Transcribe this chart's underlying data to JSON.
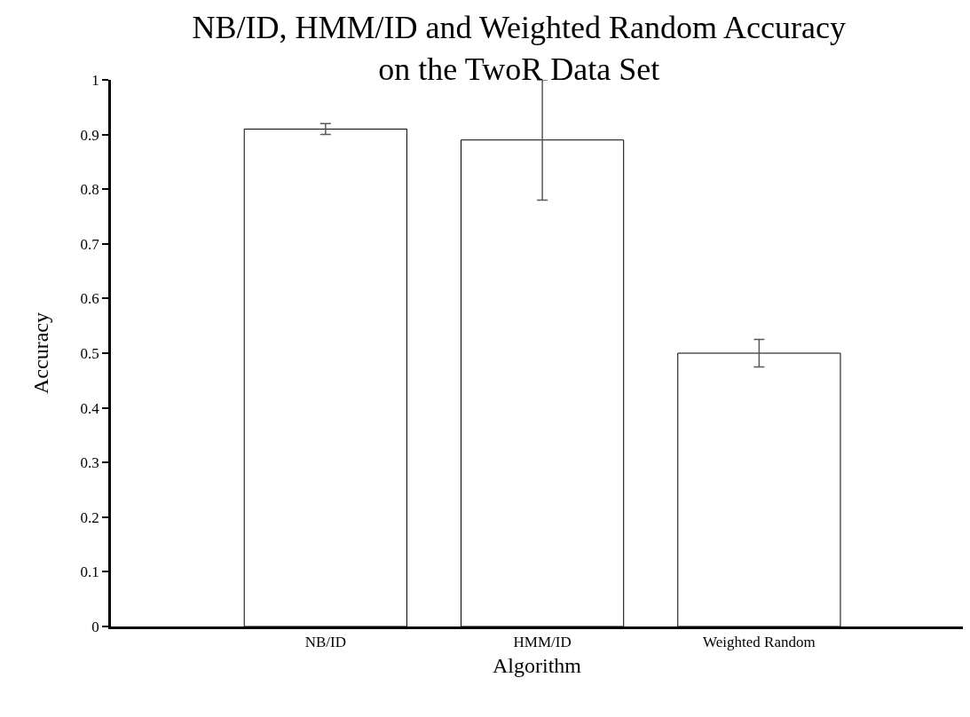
{
  "chart_data": {
    "type": "bar",
    "title": "NB/ID, HMM/ID and Weighted Random Accuracy\non the TwoR Data Set",
    "xlabel": "Algorithm",
    "ylabel": "Accuracy",
    "categories": [
      "NB/ID",
      "HMM/ID",
      "Weighted Random"
    ],
    "values": [
      0.91,
      0.89,
      0.5
    ],
    "errors": [
      0.01,
      0.11,
      0.025
    ],
    "color": "#ffffff",
    "ylim": [
      0,
      1
    ],
    "yticks": [
      0,
      0.1,
      0.2,
      0.3,
      0.4,
      0.5,
      0.6,
      0.7,
      0.8,
      0.9,
      1
    ],
    "grid": false
  }
}
